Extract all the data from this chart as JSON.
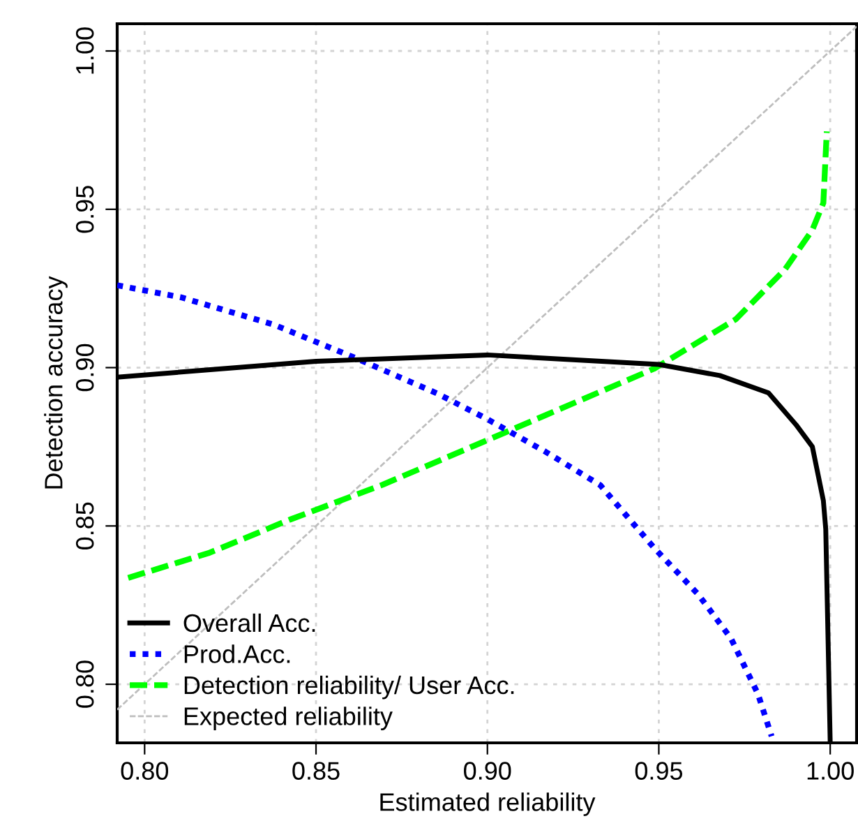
{
  "chart_data": {
    "type": "line",
    "xlabel": "Estimated reliability",
    "ylabel": "Detection accuracy",
    "xlim": [
      0.792,
      1.0077
    ],
    "ylim": [
      0.7815,
      1.0086
    ],
    "xticks": [
      {
        "value": 0.8,
        "label": "0.80"
      },
      {
        "value": 0.85,
        "label": "0.85"
      },
      {
        "value": 0.9,
        "label": "0.90"
      },
      {
        "value": 0.95,
        "label": "0.95"
      },
      {
        "value": 1.0,
        "label": "1.00"
      }
    ],
    "yticks": [
      {
        "value": 0.8,
        "label": "0.80"
      },
      {
        "value": 0.85,
        "label": "0.85"
      },
      {
        "value": 0.9,
        "label": "0.90"
      },
      {
        "value": 0.95,
        "label": "0.95"
      },
      {
        "value": 1.0,
        "label": "1.00"
      }
    ],
    "grid": true,
    "legend": "bottom left",
    "marker": "none",
    "series": [
      {
        "name": "Overall Acc.",
        "color": "#000000",
        "line_style": "solid",
        "x": [
          0.792,
          0.85,
          0.9,
          0.95,
          0.9678,
          0.982,
          0.99,
          0.9948,
          0.998,
          0.9987,
          1.0
        ],
        "values": [
          0.897,
          0.902,
          0.904,
          0.901,
          0.8975,
          0.892,
          0.882,
          0.875,
          0.858,
          0.849,
          0.7815
        ]
      },
      {
        "name": "Prod.Acc.",
        "color": "#0000ff",
        "line_style": "dotted",
        "x": [
          0.792,
          0.8106,
          0.8376,
          0.8614,
          0.8852,
          0.8995,
          0.917,
          0.9329,
          0.9487,
          0.9614,
          0.971,
          0.9789,
          0.9829
        ],
        "values": [
          0.926,
          0.9222,
          0.9136,
          0.9031,
          0.8919,
          0.884,
          0.8734,
          0.8629,
          0.843,
          0.8285,
          0.8146,
          0.797,
          0.7836
        ]
      },
      {
        "name": "Detection reliability/ User Acc.",
        "color": "#00ff00",
        "line_style": "dashed",
        "x": [
          0.7952,
          0.8186,
          0.8424,
          0.8694,
          0.8963,
          0.917,
          0.9487,
          0.9725,
          0.9868,
          0.9948,
          0.998,
          0.999
        ],
        "values": [
          0.8336,
          0.8414,
          0.852,
          0.863,
          0.8754,
          0.885,
          0.8997,
          0.9153,
          0.931,
          0.9435,
          0.952,
          0.9746
        ]
      },
      {
        "name": "Expected reliability",
        "color": "#bebebe",
        "line_style": "dashed",
        "x": [
          0.792,
          1.0077
        ],
        "values": [
          0.792,
          1.0077
        ]
      }
    ]
  }
}
